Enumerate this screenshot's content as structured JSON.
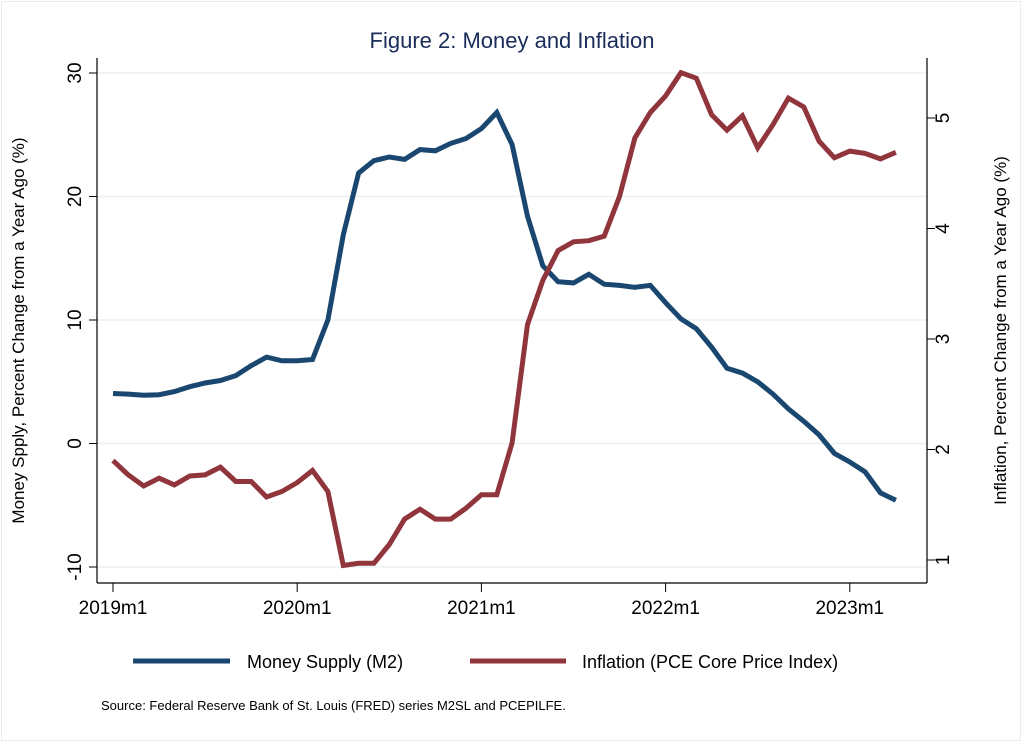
{
  "chart_data": {
    "type": "line",
    "title": "Figure 2: Money and Inflation",
    "xlabel": "",
    "ylabel": "Money Spply, Percent Change from a Year Ago (%)",
    "y2label": "Inflation, Percent Change from a Year Ago (%)",
    "x_ticks": [
      "2019m1",
      "2020m1",
      "2021m1",
      "2022m1",
      "2023m1"
    ],
    "x_start": "2019m1",
    "x_end": "2023m4",
    "ylim": [
      -10,
      30
    ],
    "y_ticks": [
      "-10",
      "0",
      "10",
      "20",
      "30"
    ],
    "y2lim": [
      1,
      5.4
    ],
    "y2_ticks": [
      "1",
      "2",
      "3",
      "4",
      "5"
    ],
    "grid": true,
    "legend_position": "bottom",
    "note": "Source: Federal Reserve Bank of St. Louis (FRED) series M2SL and PCEPILFE.",
    "series": [
      {
        "name": "Money Supply (M2)",
        "axis": "left",
        "color": "#1a476f",
        "values": [
          4.05,
          4.0,
          3.9,
          3.95,
          4.2,
          4.6,
          4.9,
          5.1,
          5.5,
          6.3,
          7.0,
          6.7,
          6.7,
          6.8,
          10.0,
          16.9,
          21.9,
          22.9,
          23.2,
          23.0,
          23.8,
          23.7,
          24.3,
          24.7,
          25.5,
          26.8,
          24.2,
          18.4,
          14.4,
          13.1,
          13.0,
          13.7,
          12.9,
          12.8,
          12.65,
          12.8,
          11.4,
          10.1,
          9.3,
          7.8,
          6.1,
          5.7,
          5.0,
          4.0,
          2.8,
          1.8,
          0.7,
          -0.8,
          -1.5,
          -2.3,
          -4.0,
          -4.6
        ]
      },
      {
        "name": "Inflation (PCE Core Price Index)",
        "axis": "right",
        "color": "#90353b",
        "values": [
          1.9,
          1.77,
          1.67,
          1.74,
          1.68,
          1.76,
          1.77,
          1.84,
          1.71,
          1.71,
          1.57,
          1.62,
          1.7,
          1.81,
          1.62,
          0.95,
          0.97,
          0.97,
          1.14,
          1.37,
          1.46,
          1.37,
          1.37,
          1.47,
          1.59,
          1.59,
          2.06,
          3.13,
          3.53,
          3.8,
          3.88,
          3.89,
          3.93,
          4.29,
          4.82,
          5.05,
          5.2,
          5.41,
          5.36,
          5.03,
          4.89,
          5.02,
          4.73,
          4.94,
          5.18,
          5.1,
          4.79,
          4.64,
          4.7,
          4.68,
          4.63,
          4.69
        ]
      }
    ]
  }
}
